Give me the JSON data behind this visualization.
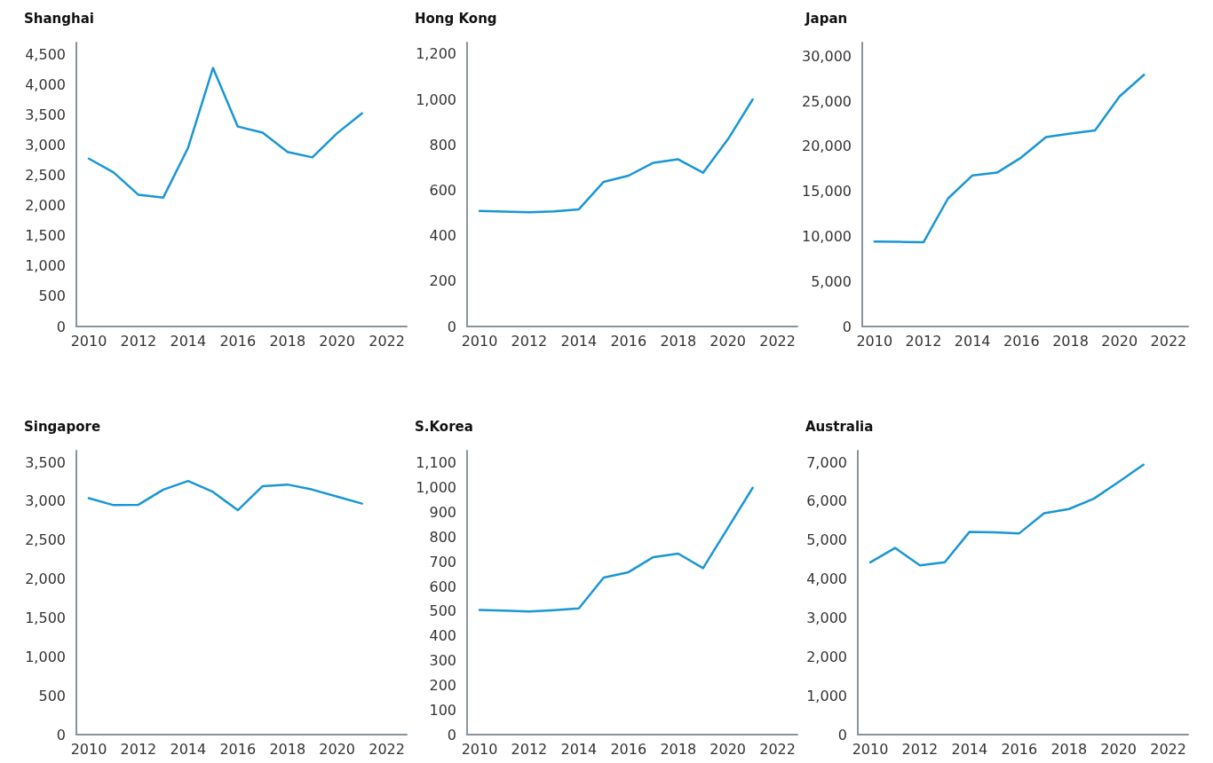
{
  "chart_data": [
    {
      "type": "line",
      "title": "Shanghai",
      "x": [
        2010,
        2011,
        2012,
        2013,
        2014,
        2015,
        2016,
        2017,
        2018,
        2019,
        2020,
        2021
      ],
      "color": "#1a96d4",
      "marker": "none",
      "values": [
        2780,
        2550,
        2180,
        2135,
        2960,
        4280,
        3310,
        3210,
        2890,
        2800,
        3200,
        3530
      ],
      "xlim": [
        2009.5,
        2022.8
      ],
      "xticks": [
        2010,
        2012,
        2014,
        2016,
        2018,
        2020,
        2022
      ],
      "ylim": [
        0,
        4700
      ],
      "yticks": [
        0,
        500,
        {
          "value": 1000,
          "label": "1,000"
        },
        {
          "value": 1500,
          "label": "1,500"
        },
        {
          "value": 2000,
          "label": "2,000"
        },
        {
          "value": 2500,
          "label": "2,500"
        },
        {
          "value": 3000,
          "label": "3,000"
        },
        {
          "value": 3500,
          "label": "3,500"
        },
        {
          "value": 4000,
          "label": "4,000"
        },
        {
          "value": 4500,
          "label": "4,500"
        }
      ]
    },
    {
      "type": "line",
      "title": "Hong Kong",
      "x": [
        2010,
        2011,
        2012,
        2013,
        2014,
        2015,
        2016,
        2017,
        2018,
        2019,
        2020,
        2021
      ],
      "color": "#1a96d4",
      "marker": "none",
      "values": [
        509,
        506,
        503,
        507,
        516,
        637,
        664,
        721,
        736,
        677,
        824,
        1000
      ],
      "xlim": [
        2009.5,
        2022.8
      ],
      "xticks": [
        2010,
        2012,
        2014,
        2016,
        2018,
        2020,
        2022
      ],
      "ylim": [
        0,
        1250
      ],
      "yticks": [
        0,
        200,
        400,
        600,
        800,
        {
          "value": 1000,
          "label": "1,000"
        },
        {
          "value": 1200,
          "label": "1,200"
        }
      ]
    },
    {
      "type": "line",
      "title": "Japan",
      "x": [
        2010,
        2011,
        2012,
        2013,
        2014,
        2015,
        2016,
        2017,
        2018,
        2019,
        2020,
        2021
      ],
      "color": "#1a96d4",
      "marker": "none",
      "values": [
        9420,
        9390,
        9350,
        14200,
        16770,
        17070,
        18770,
        21010,
        21410,
        21750,
        25520,
        27930
      ],
      "xlim": [
        2009.5,
        2022.8
      ],
      "xticks": [
        2010,
        2012,
        2014,
        2016,
        2018,
        2020,
        2022
      ],
      "ylim": [
        0,
        31500
      ],
      "yticks": [
        0,
        {
          "value": 5000,
          "label": "5,000"
        },
        {
          "value": 10000,
          "label": "10,000"
        },
        {
          "value": 15000,
          "label": "15,000"
        },
        {
          "value": 20000,
          "label": "20,000"
        },
        {
          "value": 25000,
          "label": "25,000"
        },
        {
          "value": 30000,
          "label": "30,000"
        }
      ]
    },
    {
      "type": "line",
      "title": "Singapore",
      "x": [
        2010,
        2011,
        2012,
        2013,
        2014,
        2015,
        2016,
        2017,
        2018,
        2019,
        2020,
        2021
      ],
      "color": "#1a96d4",
      "marker": "none",
      "values": [
        3040,
        2950,
        2955,
        3150,
        3260,
        3120,
        2885,
        3195,
        3215,
        3150,
        3060,
        2970
      ],
      "xlim": [
        2009.5,
        2022.8
      ],
      "xticks": [
        2010,
        2012,
        2014,
        2016,
        2018,
        2020,
        2022
      ],
      "ylim": [
        0,
        3650
      ],
      "yticks": [
        0,
        500,
        {
          "value": 1000,
          "label": "1,000"
        },
        {
          "value": 1500,
          "label": "1,500"
        },
        {
          "value": 2000,
          "label": "2,000"
        },
        {
          "value": 2500,
          "label": "2,500"
        },
        {
          "value": 3000,
          "label": "3,000"
        },
        {
          "value": 3500,
          "label": "3,500"
        }
      ]
    },
    {
      "type": "line",
      "title": "S.Korea",
      "x": [
        2010,
        2011,
        2012,
        2013,
        2014,
        2015,
        2016,
        2017,
        2018,
        2019,
        2020,
        2021
      ],
      "color": "#1a96d4",
      "marker": "none",
      "values": [
        505,
        502,
        499,
        504,
        511,
        636,
        658,
        719,
        733,
        674,
        837,
        1000
      ],
      "xlim": [
        2009.5,
        2022.8
      ],
      "xticks": [
        2010,
        2012,
        2014,
        2016,
        2018,
        2020,
        2022
      ],
      "ylim": [
        0,
        1150
      ],
      "yticks": [
        0,
        100,
        200,
        300,
        400,
        500,
        600,
        700,
        800,
        900,
        {
          "value": 1000,
          "label": "1,000"
        },
        {
          "value": 1100,
          "label": "1,100"
        }
      ]
    },
    {
      "type": "line",
      "title": "Australia",
      "x": [
        2010,
        2011,
        2012,
        2013,
        2014,
        2015,
        2016,
        2017,
        2018,
        2019,
        2020,
        2021
      ],
      "color": "#1a96d4",
      "marker": "none",
      "values": [
        4430,
        4800,
        4350,
        4430,
        5215,
        5200,
        5175,
        5690,
        5800,
        6065,
        6495,
        6940
      ],
      "xlim": [
        2009.5,
        2022.8
      ],
      "xticks": [
        2010,
        2012,
        2014,
        2016,
        2018,
        2020,
        2022
      ],
      "ylim": [
        0,
        7300
      ],
      "yticks": [
        0,
        {
          "value": 1000,
          "label": "1,000"
        },
        {
          "value": 2000,
          "label": "2,000"
        },
        {
          "value": 3000,
          "label": "3,000"
        },
        {
          "value": 4000,
          "label": "4,000"
        },
        {
          "value": 5000,
          "label": "5,000"
        },
        {
          "value": 6000,
          "label": "6,000"
        },
        {
          "value": 7000,
          "label": "7,000"
        }
      ]
    }
  ]
}
